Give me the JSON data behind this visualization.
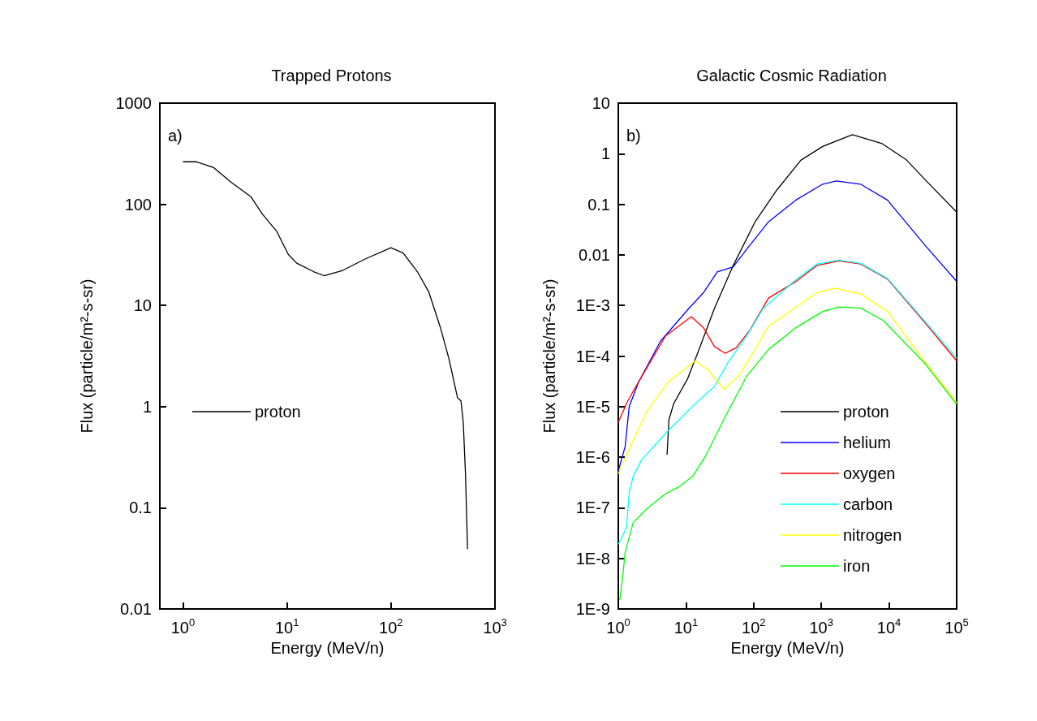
{
  "chart_data": [
    {
      "type": "line",
      "title": "Trapped Protons",
      "xlabel": "Energy (MeV/n)",
      "ylabel": "Flux (particle/m²-s-sr)",
      "annotations": [
        "a)"
      ],
      "log": "xy",
      "grid": false,
      "legend": "left",
      "xlim": [
        0.6,
        1000
      ],
      "xticks": [
        {
          "value": 1,
          "label": "10$^{0}$"
        },
        {
          "value": 10,
          "label": "10$^{1}$"
        },
        {
          "value": 100,
          "label": "10$^{2}$"
        },
        {
          "value": 1000,
          "label": "10$^{3}$"
        }
      ],
      "ylim": [
        0.01,
        1000
      ],
      "yticks": [
        0.01,
        0.1,
        1,
        10,
        100,
        1000
      ],
      "series": [
        {
          "name": "proton",
          "color": "#000000",
          "x": [
            1,
            1.35,
            1.97,
            2.89,
            4.5,
            5.8,
            7.98,
            10.3,
            12.4,
            18.2,
            22.8,
            34.4,
            57,
            100,
            131,
            180,
            231,
            298,
            361,
            437,
            471,
            496,
            521,
            545
          ],
          "values": [
            263,
            263,
            231,
            166,
            119,
            80,
            54,
            32,
            26.2,
            21.5,
            19.7,
            22.2,
            28.9,
            37.2,
            33,
            21.5,
            13.6,
            6.1,
            2.97,
            1.22,
            1.14,
            0.695,
            0.212,
            0.039
          ]
        }
      ]
    },
    {
      "type": "line",
      "title": "Galactic Cosmic Radiation",
      "xlabel": "Energy (MeV/n)",
      "ylabel": "Flux (particle/m²-s-sr)",
      "annotations": [
        "b)"
      ],
      "log": "xy",
      "grid": false,
      "legend": "bottom right",
      "xlim": [
        1,
        100000
      ],
      "xticks": [
        {
          "value": 1,
          "label": "10$^{0}$"
        },
        {
          "value": 10,
          "label": "10$^{1}$"
        },
        {
          "value": 100,
          "label": "10$^{2}$"
        },
        {
          "value": 1000,
          "label": "10$^{3}$"
        },
        {
          "value": 10000,
          "label": "10$^{4}$"
        },
        {
          "value": 100000,
          "label": "10$^{5}$"
        }
      ],
      "ylim": [
        1e-09,
        10
      ],
      "yticks": [
        {
          "value": 1e-09,
          "label": "1E-9"
        },
        {
          "value": 1e-08,
          "label": "1E-8"
        },
        {
          "value": 1e-07,
          "label": "1E-7"
        },
        {
          "value": 1e-06,
          "label": "1E-6"
        },
        {
          "value": 1e-05,
          "label": "1E-5"
        },
        {
          "value": 0.0001,
          "label": "1E-4"
        },
        {
          "value": 0.001,
          "label": "1E-3"
        },
        0.01,
        0.1,
        1,
        10
      ],
      "series": [
        {
          "name": "proton",
          "color": "#000000",
          "x": [
            5.25,
            5.6,
            6.6,
            10.5,
            15.1,
            26.3,
            50,
            105,
            219,
            501,
            1047,
            2880,
            7940,
            18200,
            34700,
            100000
          ],
          "values": [
            1.12e-06,
            5.5e-06,
            1.15e-05,
            3.5e-05,
            0.00012,
            0.00087,
            0.0062,
            0.045,
            0.19,
            0.75,
            1.39,
            2.37,
            1.58,
            0.75,
            0.3,
            0.07
          ]
        },
        {
          "name": "helium",
          "color": "#0000ff",
          "x": [
            1,
            1.26,
            1.45,
            2.0,
            4.2,
            11,
            18.2,
            29,
            50,
            79,
            166,
            417,
            1047,
            1660,
            3800,
            9550,
            34700,
            100000
          ],
          "values": [
            5.4e-07,
            1.6e-06,
            1e-05,
            3.1e-05,
            0.000196,
            0.00087,
            0.0018,
            0.0046,
            0.0058,
            0.013,
            0.045,
            0.12,
            0.25,
            0.29,
            0.25,
            0.12,
            0.015,
            0.003
          ]
        },
        {
          "name": "oxygen",
          "color": "#ff0000",
          "x": [
            1,
            1.38,
            2.0,
            5.0,
            12,
            18.2,
            26.3,
            38,
            55,
            87,
            166,
            417,
            871,
            1820,
            3800,
            9550,
            34700,
            100000
          ],
          "values": [
            4.9e-06,
            1.3e-05,
            3.1e-05,
            0.00025,
            0.0006,
            0.00036,
            0.000155,
            0.000113,
            0.000145,
            0.00032,
            0.0014,
            0.00295,
            0.0062,
            0.0076,
            0.0066,
            0.0033,
            0.00044,
            8e-05
          ]
        },
        {
          "name": "carbon",
          "color": "#00ffff",
          "x": [
            1,
            1.32,
            1.45,
            1.66,
            2.19,
            5.5,
            13.8,
            26.3,
            41.7,
            79,
            138,
            417,
            871,
            1820,
            3800,
            9550,
            34700,
            100000
          ],
          "values": [
            1.9e-08,
            4e-08,
            2e-07,
            4.2e-07,
            8.7e-07,
            3.4e-06,
            1.15e-05,
            2.5e-05,
            7.4e-05,
            0.00025,
            0.00087,
            0.0032,
            0.0066,
            0.0079,
            0.0068,
            0.0034,
            0.00047,
            9e-05
          ]
        },
        {
          "name": "nitrogen",
          "color": "#ffff00",
          "x": [
            1,
            1.38,
            2.63,
            5.5,
            13.8,
            21.9,
            36.3,
            60,
            105,
            166,
            417,
            871,
            1580,
            3800,
            9550,
            34700,
            100000
          ],
          "values": [
            4.7e-07,
            1.26e-06,
            8e-06,
            3.1e-05,
            8.1e-05,
            5.1e-05,
            2.2e-05,
            4e-05,
            0.000135,
            0.00039,
            0.00092,
            0.0018,
            0.0022,
            0.0017,
            0.00076,
            7.4e-05,
            1.2e-05
          ]
        },
        {
          "name": "iron",
          "color": "#00ff00",
          "x": [
            1.05,
            1.17,
            1.26,
            1.66,
            2.63,
            5,
            7.9,
            12.6,
            20,
            38,
            79,
            166,
            417,
            1047,
            1820,
            3800,
            8300,
            34700,
            100000
          ],
          "values": [
            1.5e-09,
            4.7e-09,
            1.3e-08,
            5.1e-08,
            9.5e-08,
            1.9e-07,
            2.6e-07,
            4.2e-07,
            1.12e-06,
            6.3e-06,
            4e-05,
            0.000135,
            0.00036,
            0.00076,
            0.00093,
            0.00089,
            0.0005,
            6.9e-05,
            1.1e-05
          ]
        }
      ]
    }
  ]
}
